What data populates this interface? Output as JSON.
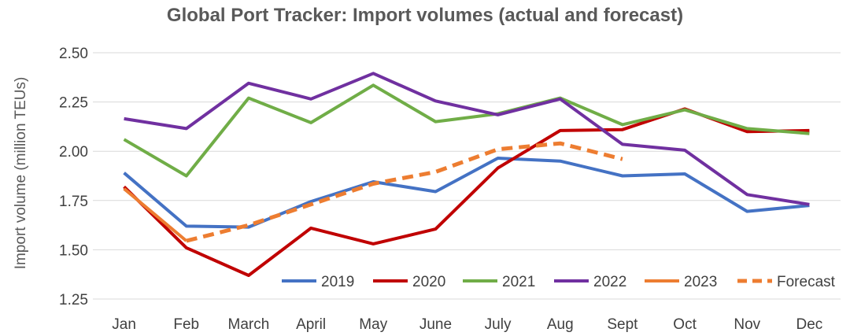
{
  "chart_data": {
    "type": "line",
    "title": "Global Port Tracker: Import volumes (actual and forecast)",
    "xlabel": "",
    "ylabel": "Import volume (million TEUs)",
    "ylim": [
      1.25,
      2.5
    ],
    "yticks": [
      "1.25",
      "1.50",
      "1.75",
      "2.00",
      "2.25",
      "2.50"
    ],
    "grid": "horizontal",
    "legend_position": "bottom-right",
    "categories": [
      "Jan",
      "Feb",
      "March",
      "April",
      "May",
      "June",
      "July",
      "Aug",
      "Sept",
      "Oct",
      "Nov",
      "Dec"
    ],
    "series": [
      {
        "name": "2019",
        "color": "#4472C4",
        "dashed": false,
        "values": [
          1.89,
          1.62,
          1.615,
          1.745,
          1.845,
          1.795,
          1.965,
          1.95,
          1.875,
          1.885,
          1.695,
          1.725
        ]
      },
      {
        "name": "2020",
        "color": "#C00000",
        "dashed": false,
        "values": [
          1.82,
          1.51,
          1.37,
          1.61,
          1.53,
          1.605,
          1.915,
          2.105,
          2.11,
          2.215,
          2.1,
          2.105
        ]
      },
      {
        "name": "2021",
        "color": "#70AD47",
        "dashed": false,
        "values": [
          2.06,
          1.875,
          2.27,
          2.145,
          2.335,
          2.15,
          2.19,
          2.27,
          2.135,
          2.21,
          2.115,
          2.09
        ]
      },
      {
        "name": "2022",
        "color": "#7030A0",
        "dashed": false,
        "values": [
          2.165,
          2.115,
          2.345,
          2.265,
          2.395,
          2.255,
          2.185,
          2.265,
          2.035,
          2.005,
          1.78,
          1.73
        ]
      },
      {
        "name": "2023",
        "color": "#ED7D31",
        "dashed": false,
        "values": [
          1.81,
          1.545,
          null,
          null,
          null,
          null,
          null,
          null,
          null,
          null,
          null,
          null
        ]
      },
      {
        "name": "Forecast",
        "color": "#ED7D31",
        "dashed": true,
        "values": [
          null,
          1.545,
          1.625,
          1.73,
          1.835,
          1.895,
          2.01,
          2.04,
          1.96,
          null,
          null,
          null
        ]
      }
    ]
  }
}
